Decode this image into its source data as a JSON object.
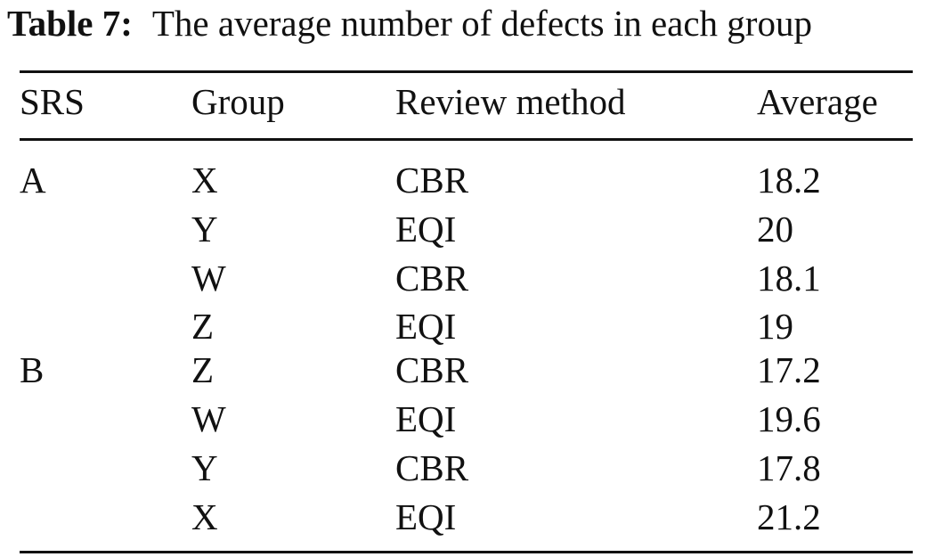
{
  "caption": {
    "label": "Table 7:",
    "text": "The average number of defects in each group"
  },
  "table": {
    "headers": {
      "srs": "SRS",
      "group": "Group",
      "method": "Review method",
      "average": "Average"
    },
    "rows": [
      {
        "srs": "A",
        "group": "X",
        "method": "CBR",
        "average": "18.2"
      },
      {
        "srs": "",
        "group": "Y",
        "method": "EQI",
        "average": "20"
      },
      {
        "srs": "",
        "group": "W",
        "method": "CBR",
        "average": "18.1"
      },
      {
        "srs": "",
        "group": "Z",
        "method": "EQI",
        "average": "19"
      },
      {
        "srs": "B",
        "group": "Z",
        "method": "CBR",
        "average": "17.2"
      },
      {
        "srs": "",
        "group": "W",
        "method": "EQI",
        "average": "19.6"
      },
      {
        "srs": "",
        "group": "Y",
        "method": "CBR",
        "average": "17.8"
      },
      {
        "srs": "",
        "group": "X",
        "method": "EQI",
        "average": "21.2"
      }
    ]
  }
}
